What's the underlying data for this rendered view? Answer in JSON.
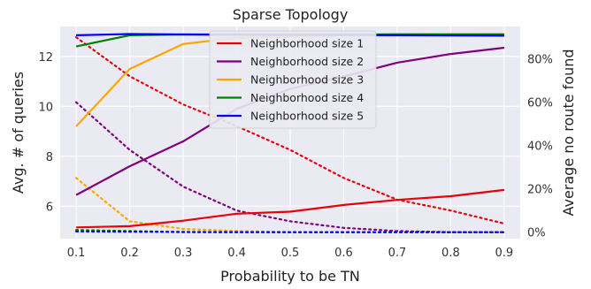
{
  "chart_data": {
    "type": "line",
    "title": "Sparse Topology",
    "xlabel": "Probability to be TN",
    "ylabel_left": "Avg. # of queries",
    "ylabel_right": "Average no route found",
    "x": [
      0.1,
      0.2,
      0.3,
      0.4,
      0.5,
      0.6,
      0.7,
      0.8,
      0.9
    ],
    "x_ticks": [
      "0.1",
      "0.2",
      "0.3",
      "0.4",
      "0.5",
      "0.6",
      "0.7",
      "0.8",
      "0.9"
    ],
    "xlim": [
      0.07,
      0.93
    ],
    "ylim_left": [
      4.7,
      13.2
    ],
    "yticks_left": [
      "6",
      "8",
      "10",
      "12"
    ],
    "ylim_right": [
      -3,
      95
    ],
    "yticks_right": [
      "0%",
      "20%",
      "40%",
      "60%",
      "80%"
    ],
    "grid": true,
    "legend_position": "top-center",
    "series": [
      {
        "name": "Neighborhood size 1",
        "color": "#e8000b",
        "queries": [
          5.15,
          5.2,
          5.42,
          5.7,
          5.78,
          6.05,
          6.25,
          6.4,
          6.65
        ],
        "no_route_pct": [
          90,
          72,
          59,
          49,
          38,
          25,
          15,
          10,
          4
        ]
      },
      {
        "name": "Neighborhood size 2",
        "color": "#800080",
        "queries": [
          6.45,
          7.6,
          8.6,
          9.9,
          10.7,
          11.2,
          11.75,
          12.1,
          12.35
        ],
        "no_route_pct": [
          60,
          38,
          21,
          10,
          5,
          2,
          0.5,
          0,
          0
        ]
      },
      {
        "name": "Neighborhood size 3",
        "color": "#ffa500",
        "queries": [
          9.2,
          11.5,
          12.5,
          12.75,
          12.8,
          12.85,
          12.9,
          12.9,
          12.9
        ],
        "no_route_pct": [
          25,
          5,
          1.5,
          0.5,
          0,
          0,
          0,
          0,
          0
        ]
      },
      {
        "name": "Neighborhood size 4",
        "color": "#008000",
        "queries": [
          12.4,
          12.85,
          12.88,
          12.88,
          12.88,
          12.88,
          12.88,
          12.88,
          12.88
        ],
        "no_route_pct": [
          1,
          0.5,
          0,
          0,
          0,
          0,
          0,
          0,
          0
        ]
      },
      {
        "name": "Neighborhood size 5",
        "color": "#0000ff",
        "queries": [
          12.85,
          12.9,
          12.88,
          12.87,
          12.86,
          12.86,
          12.85,
          12.84,
          12.83
        ],
        "no_route_pct": [
          0.3,
          0.2,
          0.1,
          0,
          0,
          0,
          0,
          0,
          0
        ]
      }
    ]
  }
}
